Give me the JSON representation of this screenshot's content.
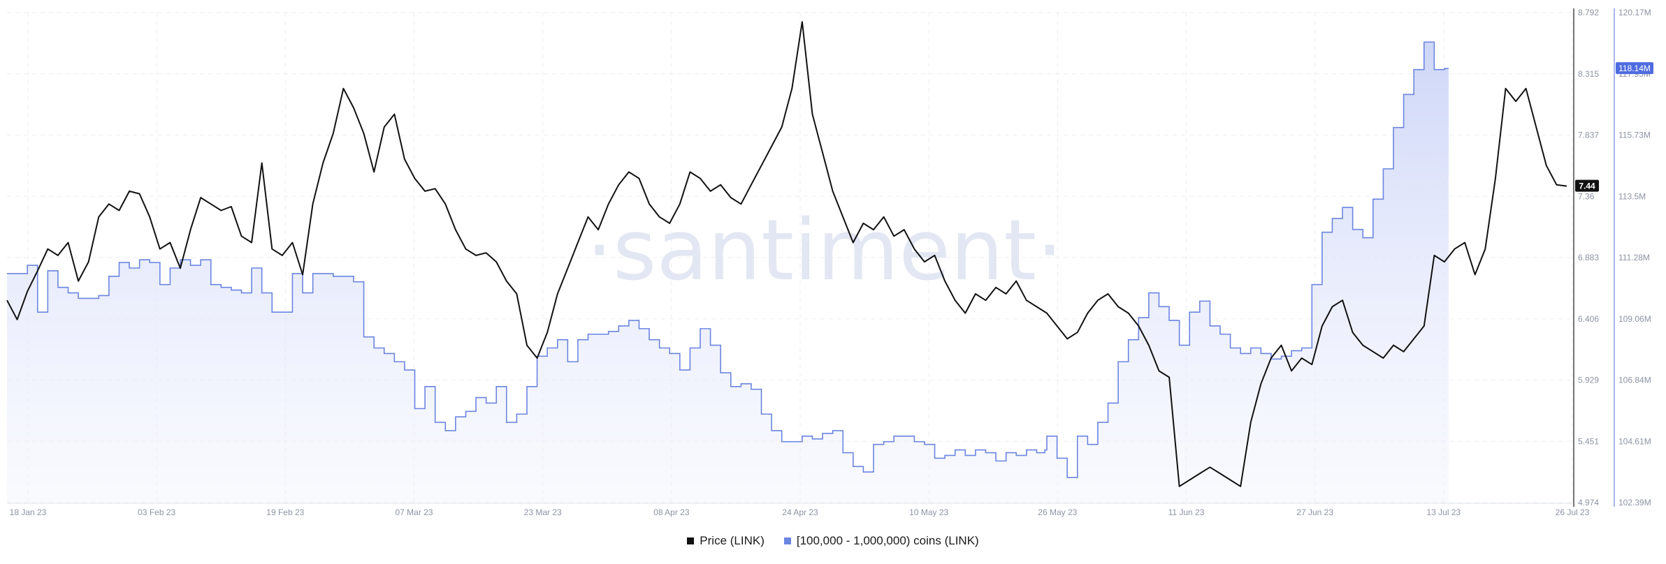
{
  "chart_data": {
    "type": "line",
    "watermark": "·santiment·",
    "x_ticks": [
      "18 Jan 23",
      "03 Feb 23",
      "19 Feb 23",
      "07 Mar 23",
      "23 Mar 23",
      "08 Apr 23",
      "24 Apr 23",
      "10 May 23",
      "26 May 23",
      "11 Jun 23",
      "27 Jun 23",
      "13 Jul 23",
      "26 Jul 23"
    ],
    "y_left_ticks": [
      "8.792",
      "8.315",
      "7.837",
      "7.36",
      "6.883",
      "6.406",
      "5.929",
      "5.451",
      "4.974"
    ],
    "y_right_ticks": [
      "120.17M",
      "117.95M",
      "115.73M",
      "113.5M",
      "111.28M",
      "109.06M",
      "106.84M",
      "104.61M",
      "102.39M"
    ],
    "y_left_range": [
      4.974,
      8.792
    ],
    "y_right_range": [
      102.39,
      120.17
    ],
    "colors": {
      "price": "#111111",
      "holdings": "#6b85e0",
      "holdings_fill": "#dfe4fb",
      "price_badge": "#111111",
      "holdings_badge": "#4f6be0"
    },
    "series": [
      {
        "name": "Price (LINK)",
        "axis": "left",
        "badge": "7.44",
        "points": [
          [
            0,
            6.55
          ],
          [
            1,
            6.4
          ],
          [
            2,
            6.62
          ],
          [
            3,
            6.78
          ],
          [
            4,
            6.95
          ],
          [
            5,
            6.9
          ],
          [
            6,
            7.0
          ],
          [
            7,
            6.7
          ],
          [
            8,
            6.85
          ],
          [
            9,
            7.2
          ],
          [
            10,
            7.3
          ],
          [
            11,
            7.25
          ],
          [
            12,
            7.4
          ],
          [
            13,
            7.38
          ],
          [
            14,
            7.2
          ],
          [
            15,
            6.95
          ],
          [
            16,
            7.0
          ],
          [
            17,
            6.8
          ],
          [
            18,
            7.1
          ],
          [
            19,
            7.35
          ],
          [
            20,
            7.3
          ],
          [
            21,
            7.25
          ],
          [
            22,
            7.28
          ],
          [
            23,
            7.05
          ],
          [
            24,
            7.0
          ],
          [
            25,
            7.62
          ],
          [
            26,
            6.95
          ],
          [
            27,
            6.9
          ],
          [
            28,
            7.0
          ],
          [
            29,
            6.75
          ],
          [
            30,
            7.3
          ],
          [
            31,
            7.62
          ],
          [
            32,
            7.85
          ],
          [
            33,
            8.2
          ],
          [
            34,
            8.05
          ],
          [
            35,
            7.85
          ],
          [
            36,
            7.55
          ],
          [
            37,
            7.9
          ],
          [
            38,
            8.0
          ],
          [
            39,
            7.65
          ],
          [
            40,
            7.5
          ],
          [
            41,
            7.4
          ],
          [
            42,
            7.42
          ],
          [
            43,
            7.3
          ],
          [
            44,
            7.1
          ],
          [
            45,
            6.95
          ],
          [
            46,
            6.9
          ],
          [
            47,
            6.92
          ],
          [
            48,
            6.85
          ],
          [
            49,
            6.7
          ],
          [
            50,
            6.6
          ],
          [
            51,
            6.2
          ],
          [
            52,
            6.1
          ],
          [
            53,
            6.3
          ],
          [
            54,
            6.6
          ],
          [
            55,
            6.8
          ],
          [
            56,
            7.0
          ],
          [
            57,
            7.2
          ],
          [
            58,
            7.1
          ],
          [
            59,
            7.3
          ],
          [
            60,
            7.45
          ],
          [
            61,
            7.55
          ],
          [
            62,
            7.5
          ],
          [
            63,
            7.3
          ],
          [
            64,
            7.2
          ],
          [
            65,
            7.15
          ],
          [
            66,
            7.3
          ],
          [
            67,
            7.55
          ],
          [
            68,
            7.5
          ],
          [
            69,
            7.4
          ],
          [
            70,
            7.45
          ],
          [
            71,
            7.35
          ],
          [
            72,
            7.3
          ],
          [
            73,
            7.45
          ],
          [
            74,
            7.6
          ],
          [
            75,
            7.75
          ],
          [
            76,
            7.9
          ],
          [
            77,
            8.2
          ],
          [
            78,
            8.72
          ],
          [
            79,
            8.0
          ],
          [
            80,
            7.7
          ],
          [
            81,
            7.4
          ],
          [
            82,
            7.2
          ],
          [
            83,
            7.0
          ],
          [
            84,
            7.15
          ],
          [
            85,
            7.1
          ],
          [
            86,
            7.2
          ],
          [
            87,
            7.05
          ],
          [
            88,
            7.1
          ],
          [
            89,
            6.95
          ],
          [
            90,
            6.85
          ],
          [
            91,
            6.9
          ],
          [
            92,
            6.7
          ],
          [
            93,
            6.55
          ],
          [
            94,
            6.45
          ],
          [
            95,
            6.6
          ],
          [
            96,
            6.55
          ],
          [
            97,
            6.65
          ],
          [
            98,
            6.6
          ],
          [
            99,
            6.7
          ],
          [
            100,
            6.55
          ],
          [
            101,
            6.5
          ],
          [
            102,
            6.45
          ],
          [
            103,
            6.35
          ],
          [
            104,
            6.25
          ],
          [
            105,
            6.3
          ],
          [
            106,
            6.45
          ],
          [
            107,
            6.55
          ],
          [
            108,
            6.6
          ],
          [
            109,
            6.5
          ],
          [
            110,
            6.45
          ],
          [
            111,
            6.35
          ],
          [
            112,
            6.2
          ],
          [
            113,
            6.0
          ],
          [
            114,
            5.95
          ],
          [
            115,
            5.1
          ],
          [
            116,
            5.15
          ],
          [
            117,
            5.2
          ],
          [
            118,
            5.25
          ],
          [
            119,
            5.2
          ],
          [
            120,
            5.15
          ],
          [
            121,
            5.1
          ],
          [
            122,
            5.6
          ],
          [
            123,
            5.9
          ],
          [
            124,
            6.1
          ],
          [
            125,
            6.2
          ],
          [
            126,
            6.0
          ],
          [
            127,
            6.1
          ],
          [
            128,
            6.05
          ],
          [
            129,
            6.35
          ],
          [
            130,
            6.5
          ],
          [
            131,
            6.55
          ],
          [
            132,
            6.3
          ],
          [
            133,
            6.2
          ],
          [
            134,
            6.15
          ],
          [
            135,
            6.1
          ],
          [
            136,
            6.2
          ],
          [
            137,
            6.15
          ],
          [
            138,
            6.25
          ],
          [
            139,
            6.35
          ],
          [
            140,
            6.9
          ],
          [
            141,
            6.85
          ],
          [
            142,
            6.95
          ],
          [
            143,
            7.0
          ],
          [
            144,
            6.75
          ],
          [
            145,
            6.95
          ],
          [
            146,
            7.5
          ],
          [
            147,
            8.2
          ],
          [
            148,
            8.1
          ],
          [
            149,
            8.2
          ],
          [
            150,
            7.9
          ],
          [
            151,
            7.6
          ],
          [
            152,
            7.45
          ],
          [
            153,
            7.44
          ]
        ]
      },
      {
        "name": "[100,000  - 1,000,000) coins (LINK)",
        "axis": "right",
        "badge": "118.14M",
        "points": [
          [
            0,
            110.7
          ],
          [
            1,
            110.7
          ],
          [
            2,
            111.0
          ],
          [
            3,
            109.3
          ],
          [
            4,
            110.8
          ],
          [
            5,
            110.2
          ],
          [
            6,
            110.0
          ],
          [
            7,
            109.8
          ],
          [
            8,
            109.8
          ],
          [
            9,
            109.9
          ],
          [
            10,
            110.6
          ],
          [
            11,
            111.1
          ],
          [
            12,
            110.9
          ],
          [
            13,
            111.2
          ],
          [
            14,
            111.1
          ],
          [
            15,
            110.3
          ],
          [
            16,
            110.9
          ],
          [
            17,
            111.2
          ],
          [
            18,
            111.0
          ],
          [
            19,
            111.2
          ],
          [
            20,
            110.3
          ],
          [
            21,
            110.2
          ],
          [
            22,
            110.1
          ],
          [
            23,
            110.0
          ],
          [
            24,
            110.9
          ],
          [
            25,
            110.0
          ],
          [
            26,
            109.3
          ],
          [
            27,
            109.3
          ],
          [
            28,
            110.7
          ],
          [
            29,
            110.0
          ],
          [
            30,
            110.7
          ],
          [
            31,
            110.7
          ],
          [
            32,
            110.6
          ],
          [
            33,
            110.6
          ],
          [
            34,
            110.4
          ],
          [
            35,
            108.4
          ],
          [
            36,
            108.0
          ],
          [
            37,
            107.8
          ],
          [
            38,
            107.5
          ],
          [
            39,
            107.2
          ],
          [
            40,
            105.8
          ],
          [
            41,
            106.6
          ],
          [
            42,
            105.3
          ],
          [
            43,
            105.0
          ],
          [
            44,
            105.5
          ],
          [
            45,
            105.7
          ],
          [
            46,
            106.2
          ],
          [
            47,
            106.0
          ],
          [
            48,
            106.6
          ],
          [
            49,
            105.3
          ],
          [
            50,
            105.6
          ],
          [
            51,
            106.6
          ],
          [
            52,
            107.7
          ],
          [
            53,
            108.0
          ],
          [
            54,
            108.3
          ],
          [
            55,
            107.5
          ],
          [
            56,
            108.3
          ],
          [
            57,
            108.5
          ],
          [
            58,
            108.5
          ],
          [
            59,
            108.6
          ],
          [
            60,
            108.8
          ],
          [
            61,
            109.0
          ],
          [
            62,
            108.7
          ],
          [
            63,
            108.3
          ],
          [
            64,
            108.0
          ],
          [
            65,
            107.8
          ],
          [
            66,
            107.2
          ],
          [
            67,
            108.0
          ],
          [
            68,
            108.7
          ],
          [
            69,
            108.1
          ],
          [
            70,
            107.1
          ],
          [
            71,
            106.6
          ],
          [
            72,
            106.7
          ],
          [
            73,
            106.5
          ],
          [
            74,
            105.6
          ],
          [
            75,
            105.0
          ],
          [
            76,
            104.6
          ],
          [
            77,
            104.6
          ],
          [
            78,
            104.8
          ],
          [
            79,
            104.7
          ],
          [
            80,
            104.9
          ],
          [
            81,
            105.0
          ],
          [
            82,
            104.2
          ],
          [
            83,
            103.7
          ],
          [
            84,
            103.5
          ],
          [
            85,
            104.5
          ],
          [
            86,
            104.6
          ],
          [
            87,
            104.8
          ],
          [
            88,
            104.8
          ],
          [
            89,
            104.6
          ],
          [
            90,
            104.5
          ],
          [
            91,
            104.0
          ],
          [
            92,
            104.1
          ],
          [
            93,
            104.3
          ],
          [
            94,
            104.1
          ],
          [
            95,
            104.3
          ],
          [
            96,
            104.2
          ],
          [
            97,
            103.9
          ],
          [
            98,
            104.2
          ],
          [
            99,
            104.1
          ],
          [
            100,
            104.3
          ],
          [
            101,
            104.2
          ],
          [
            101.8,
            104.3
          ],
          [
            102,
            104.8
          ],
          [
            103,
            104.0
          ],
          [
            104,
            103.3
          ],
          [
            105,
            104.8
          ],
          [
            106,
            104.5
          ],
          [
            107,
            105.3
          ],
          [
            108,
            106.0
          ],
          [
            109,
            107.5
          ],
          [
            110,
            108.3
          ],
          [
            111,
            109.1
          ],
          [
            112,
            110.0
          ],
          [
            113,
            109.5
          ],
          [
            114,
            109.0
          ],
          [
            115,
            108.1
          ],
          [
            116,
            109.3
          ],
          [
            117,
            109.7
          ],
          [
            118,
            108.8
          ],
          [
            119,
            108.5
          ],
          [
            120,
            108.0
          ],
          [
            121,
            107.8
          ],
          [
            122,
            108.0
          ],
          [
            123,
            107.8
          ],
          [
            124,
            107.6
          ],
          [
            125,
            107.7
          ],
          [
            126,
            107.9
          ],
          [
            127,
            108.0
          ],
          [
            128,
            110.3
          ],
          [
            129,
            112.2
          ],
          [
            130,
            112.7
          ],
          [
            131,
            113.1
          ],
          [
            132,
            112.3
          ],
          [
            133,
            112.0
          ],
          [
            134,
            113.4
          ],
          [
            135,
            114.5
          ],
          [
            136,
            116.0
          ],
          [
            137,
            117.2
          ],
          [
            138,
            118.1
          ],
          [
            139,
            119.1
          ],
          [
            140,
            118.1
          ],
          [
            141,
            118.14
          ]
        ]
      }
    ]
  }
}
